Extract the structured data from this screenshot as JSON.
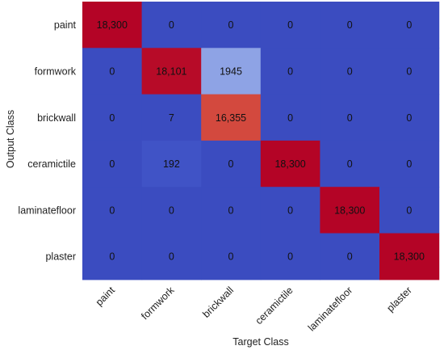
{
  "chart_data": {
    "type": "heatmap",
    "title": "",
    "xlabel": "Target Class",
    "ylabel": "Output Class",
    "x_categories": [
      "paint",
      "formwork",
      "brickwall",
      "ceramictile",
      "laminatefloor",
      "plaster"
    ],
    "y_categories": [
      "paint",
      "formwork",
      "brickwall",
      "ceramictile",
      "laminatefloor",
      "plaster"
    ],
    "values": [
      [
        18300,
        0,
        0,
        0,
        0,
        0
      ],
      [
        0,
        18101,
        1945,
        0,
        0,
        0
      ],
      [
        0,
        7,
        16355,
        0,
        0,
        0
      ],
      [
        0,
        192,
        0,
        18300,
        0,
        0
      ],
      [
        0,
        0,
        0,
        0,
        18300,
        0
      ],
      [
        0,
        0,
        0,
        0,
        0,
        18300
      ]
    ],
    "value_labels": [
      [
        "18,300",
        "0",
        "0",
        "0",
        "0",
        "0"
      ],
      [
        "0",
        "18,101",
        "1945",
        "0",
        "0",
        "0"
      ],
      [
        "0",
        "7",
        "16,355",
        "0",
        "0",
        "0"
      ],
      [
        "0",
        "192",
        "0",
        "18,300",
        "0",
        "0"
      ],
      [
        "0",
        "0",
        "0",
        "0",
        "18,300",
        "0"
      ],
      [
        "0",
        "0",
        "0",
        "0",
        "0",
        "18,300"
      ]
    ],
    "colormap": "coolwarm",
    "color_low": "#3b4cc0",
    "color_high": "#b40426",
    "value_range": [
      0,
      18300
    ],
    "grid": false,
    "legend": "none"
  }
}
